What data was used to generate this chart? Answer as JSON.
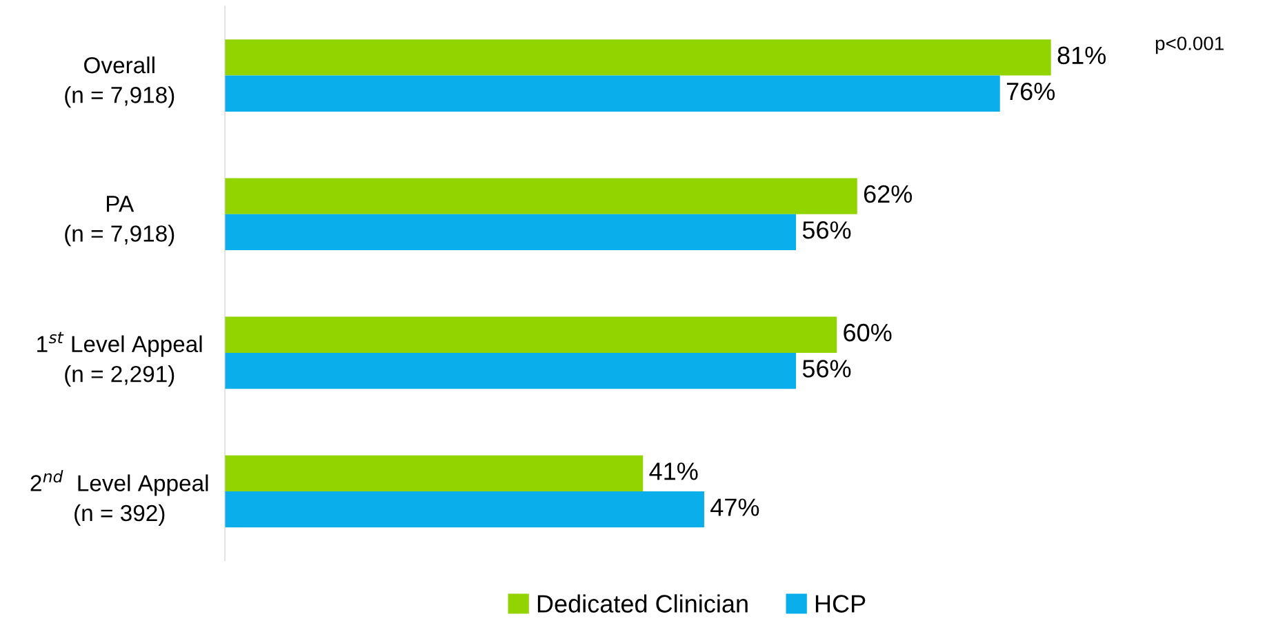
{
  "chart_data": {
    "type": "bar",
    "orientation": "horizontal",
    "categories": [
      "Overall\n(n = 7,918)",
      "PA\n(n = 7,918)",
      "1$^{st}$ Level Appeal\n(n = 2,291)",
      "2$^{nd}$  Level Appeal\n(n = 392)"
    ],
    "series": [
      {
        "name": "Dedicated Clinician",
        "color": "#92d400",
        "values": [
          81,
          62,
          60,
          41
        ],
        "value_labels": [
          "81%",
          "62%",
          "60%",
          "41%"
        ]
      },
      {
        "name": "HCP",
        "color": "#0aaeeb",
        "values": [
          76,
          56,
          56,
          47
        ],
        "value_labels": [
          "76%",
          "56%",
          "56%",
          "47%"
        ]
      }
    ],
    "annotations": [
      "p<0.001"
    ],
    "legend": "bottom",
    "grid": false,
    "tick_labels": "y"
  }
}
